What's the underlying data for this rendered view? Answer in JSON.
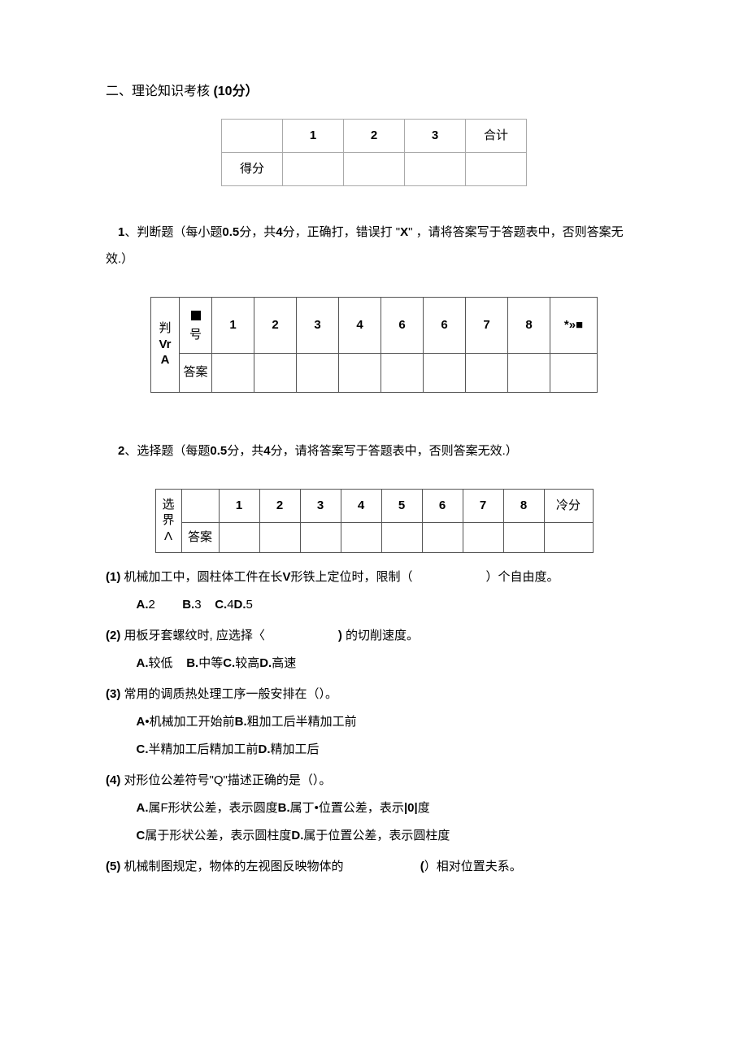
{
  "section": {
    "title_prefix": "二、理论知识考核 ",
    "title_points": "(10分）"
  },
  "score_table": {
    "row_label": "得分",
    "cols": [
      "1",
      "2",
      "3"
    ],
    "total_label": "合计"
  },
  "judge": {
    "intro_num": "1",
    "intro_text_1": "、判断题（每小题",
    "intro_pts1": "0.5",
    "intro_text_2": "分，共",
    "intro_pts2": "4",
    "intro_text_3": "分，正确打，错误打 \"",
    "intro_mark": "X",
    "intro_text_4": "\" ，请将答案写于答题表中，否则答案无效.）",
    "row_label_1": "判",
    "row_label_2": "Vr",
    "row_label_3": "A",
    "sub_label_top": "号",
    "sub_label_bottom": "答案",
    "nums": [
      "1",
      "2",
      "3",
      "4",
      "6",
      "6",
      "7",
      "8"
    ],
    "last_col": "*»■"
  },
  "choice": {
    "intro_num": "2",
    "intro_text_1": "、选择题（每题",
    "intro_pts1": "0.5",
    "intro_text_2": "分，共",
    "intro_pts2": "4",
    "intro_text_3": "分，请将答案写于答题表中，否则答案无效.）",
    "row_label_1": "选界",
    "row_label_2": "Λ",
    "sub_label_bottom": "答案",
    "nums": [
      "1",
      "2",
      "3",
      "4",
      "5",
      "6",
      "7",
      "8"
    ],
    "last_col": "冷分"
  },
  "questions": [
    {
      "num": "(1)",
      "text_before": " 机械加工中，圆柱体工件在长",
      "bold_in": "V",
      "text_after": "形铁上定位时，限制（",
      "tail": "）个自由度。",
      "options_line": [
        {
          "p": "A.",
          "t": "2"
        },
        {
          "spacer": "        "
        },
        {
          "p": "B.",
          "t": "3"
        },
        {
          "spacer": "    "
        },
        {
          "p": "C.",
          "t": "4"
        },
        {
          "p": "D.",
          "t": "5"
        }
      ]
    },
    {
      "num": "(2)",
      "text_before": " 用板牙套螺纹时, 应选择〈",
      "tail_bold": ")",
      "tail": " 的切削速度。",
      "options_line": [
        {
          "p": "A.",
          "t": "较低"
        },
        {
          "spacer": "    "
        },
        {
          "p": "B.",
          "t": "中等"
        },
        {
          "p": "C.",
          "t": "较高"
        },
        {
          "p": "D.",
          "t": "高速"
        }
      ]
    },
    {
      "num": "(3)",
      "text_before": " 常用的调质热处理工序一般安排在（）。",
      "options_multi": [
        [
          {
            "p": "A",
            "t": "•机械加工开始前"
          },
          {
            "p": "B.",
            "t": "粗加工后半精加工前"
          }
        ],
        [
          {
            "p": "C.",
            "t": "半精加工后精加工前"
          },
          {
            "p": "D.",
            "t": "精加工后"
          }
        ]
      ]
    },
    {
      "num": "(4)",
      "text_before": " 对形位公差符号\"Q\"描述正确的是（）。",
      "options_multi": [
        [
          {
            "p": "A.",
            "t": "属F形状公差，表示圆度"
          },
          {
            "p": "B.",
            "t": "属丁•位置公差，表示"
          },
          {
            "p": "|0|",
            "t": "度"
          }
        ],
        [
          {
            "p": "C",
            "t": "属于形状公差，表示圆柱度"
          },
          {
            "p": "D.",
            "t": "属于位置公差，表示圆柱度"
          }
        ]
      ]
    },
    {
      "num": "(5)",
      "text_before": " 机械制图规定，物体的左视图反映物体的 ",
      "tail_bold": "(",
      "tail": "）相对位置夫系。"
    }
  ]
}
